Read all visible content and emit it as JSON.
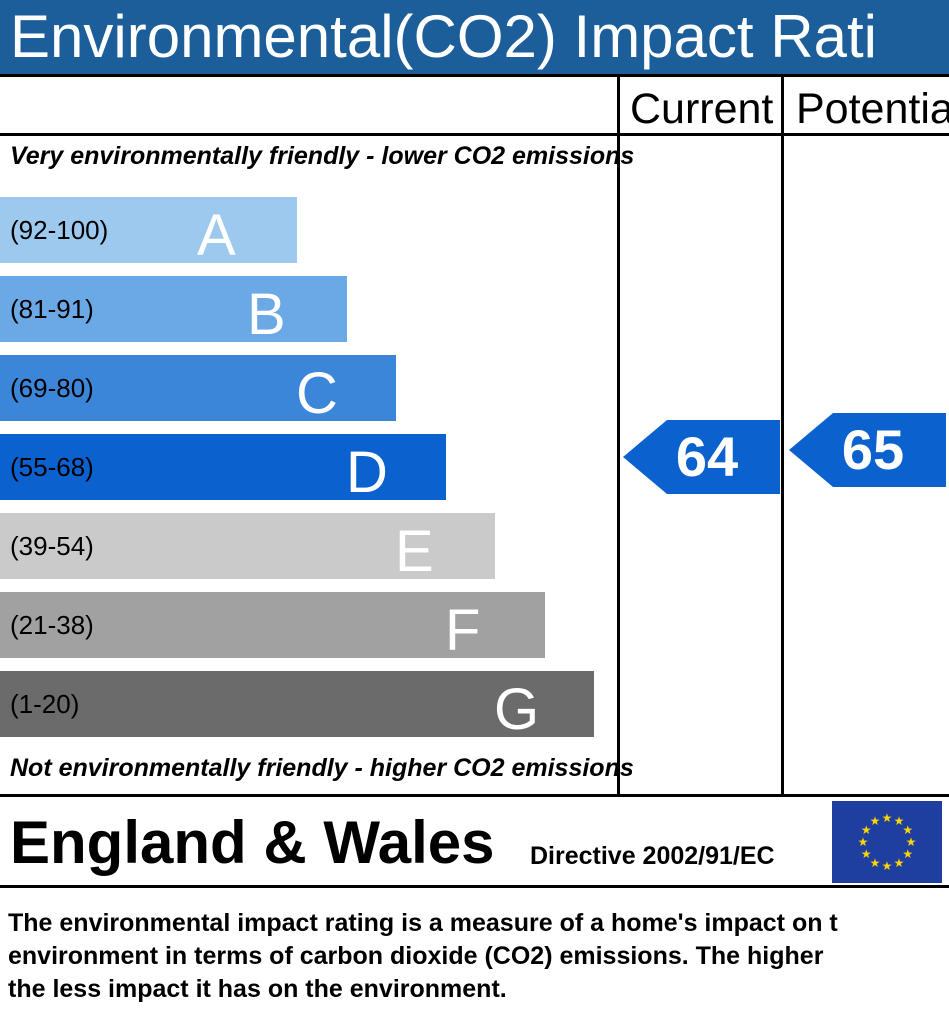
{
  "header": {
    "title": "Environmental(CO2) Impact Rati"
  },
  "columns": {
    "current": "Current",
    "potential": "Potentia"
  },
  "captions": {
    "top": "Very environmentally friendly - lower CO2 emissions",
    "bottom": "Not environmentally friendly - higher CO2 emissions"
  },
  "chart_data": {
    "type": "bar",
    "bands": [
      {
        "range": "(92-100)",
        "letter": "A",
        "color": "#9ec9ee",
        "min": 92,
        "max": 100
      },
      {
        "range": "(81-91)",
        "letter": "B",
        "color": "#6aa8e6",
        "min": 81,
        "max": 91
      },
      {
        "range": "(69-80)",
        "letter": "C",
        "color": "#3c86da",
        "min": 69,
        "max": 80
      },
      {
        "range": "(55-68)",
        "letter": "D",
        "color": "#0b62cf",
        "min": 55,
        "max": 68
      },
      {
        "range": "(39-54)",
        "letter": "E",
        "color": "#cacaca",
        "min": 39,
        "max": 54
      },
      {
        "range": "(21-38)",
        "letter": "F",
        "color": "#a1a1a1",
        "min": 21,
        "max": 38
      },
      {
        "range": "(1-20)",
        "letter": "G",
        "color": "#6b6b6b",
        "min": 1,
        "max": 20
      }
    ],
    "ratings": {
      "current": {
        "value": 64,
        "band": "D",
        "color": "#0b62cf"
      },
      "potential": {
        "value": 65,
        "band": "D",
        "color": "#0b62cf"
      }
    }
  },
  "footer": {
    "region": "England & Wales",
    "directive": "Directive 2002/91/EC",
    "flag_icon": "eu-flag-icon"
  },
  "description": {
    "line1": "The environmental impact rating is a measure of a home's impact on t",
    "line2": "environment in terms of carbon dioxide (CO2) emissions. The higher",
    "line3": "the less impact it has on the environment."
  }
}
